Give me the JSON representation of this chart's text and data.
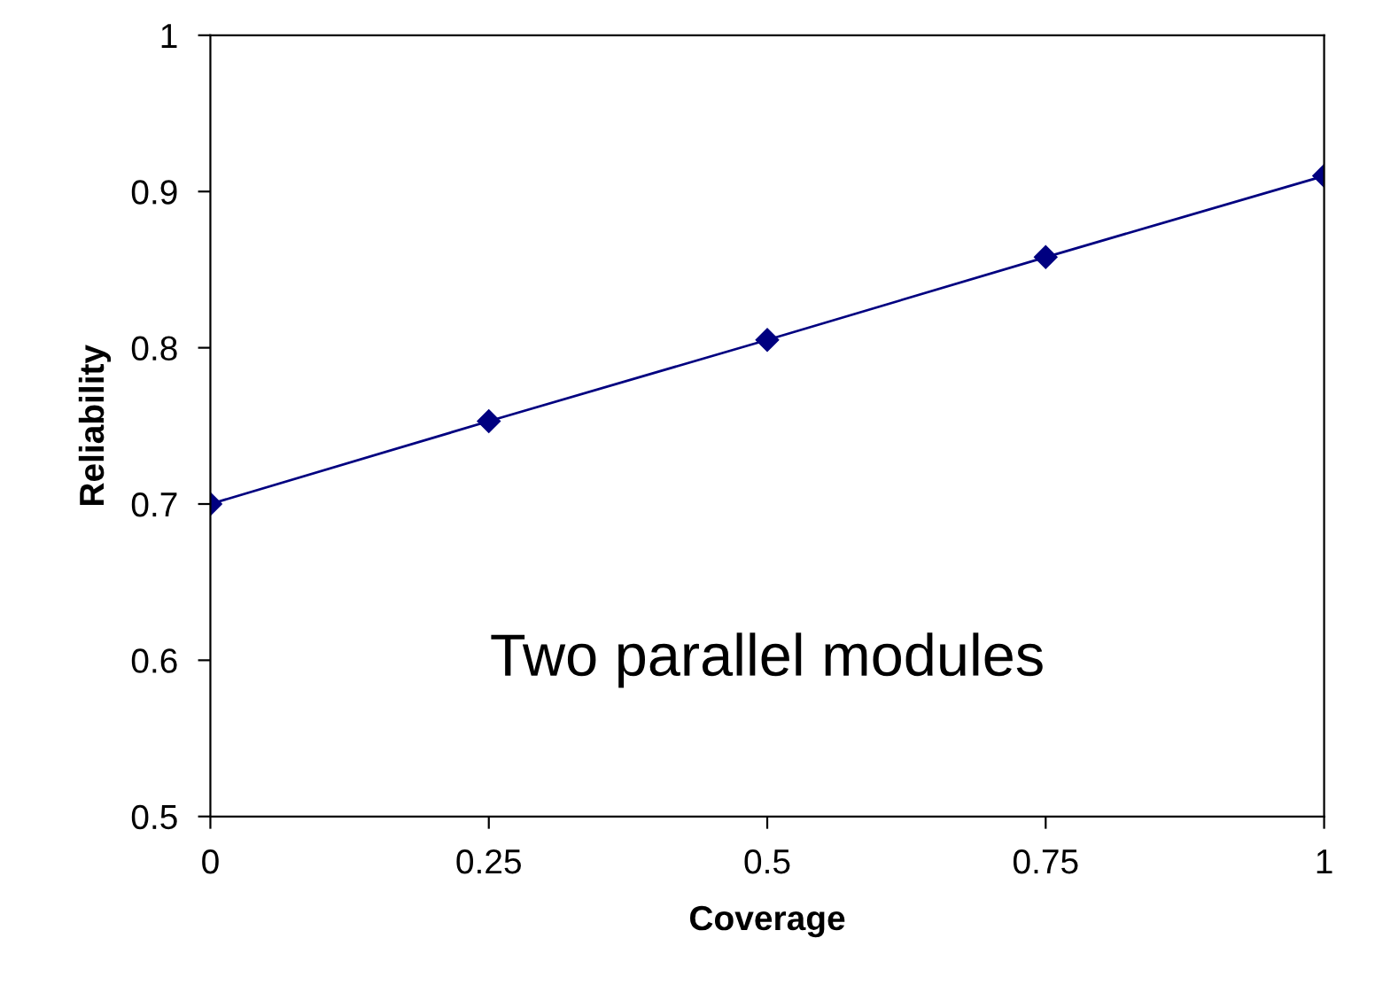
{
  "chart_data": {
    "type": "line",
    "xlabel": "Coverage",
    "ylabel": "Reliability",
    "x": [
      0,
      0.25,
      0.5,
      0.75,
      1
    ],
    "series": [
      {
        "color": "#000080",
        "values": [
          0.7,
          0.753,
          0.805,
          0.858,
          0.91
        ]
      }
    ],
    "xlim": [
      0,
      1
    ],
    "xticks": [
      0,
      0.25,
      0.5,
      0.75,
      1
    ],
    "ylim": [
      0.5,
      1
    ],
    "yticks": [
      0.5,
      0.6,
      0.7,
      0.8,
      0.9,
      1
    ],
    "marker": "diamond",
    "line_style": "solid",
    "grid": false,
    "legend": false,
    "annotations": [
      "Two parallel modules"
    ]
  }
}
